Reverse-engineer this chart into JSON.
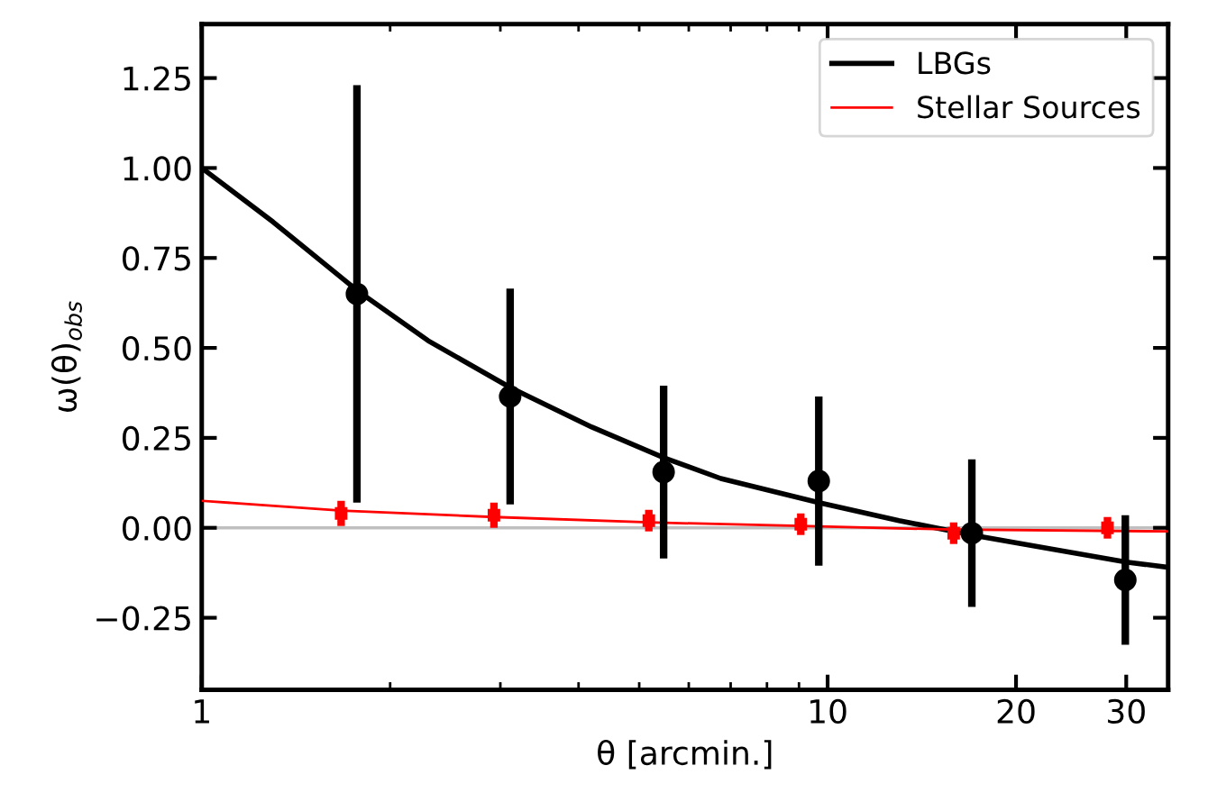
{
  "chart_data": {
    "type": "scatter",
    "xlabel": "θ [arcmin.]",
    "ylabel": "ω(θ)$_{obs}$",
    "log": "x",
    "xlim": [
      1,
      35
    ],
    "ylim": [
      -0.45,
      1.4
    ],
    "xticks": [
      1,
      10,
      20,
      30
    ],
    "yticks": [
      {
        "value": -0.25,
        "label": "−0.25"
      },
      {
        "value": 0,
        "label": "0.00"
      },
      {
        "value": 0.25,
        "label": "0.25"
      },
      {
        "value": 0.5,
        "label": "0.50"
      },
      {
        "value": 0.75,
        "label": "0.75"
      },
      {
        "value": 1.0,
        "label": "1.00"
      },
      {
        "value": 1.25,
        "label": "1.25"
      }
    ],
    "grid": false,
    "legend": "top right",
    "marker": "circle",
    "ref_lines": [
      {
        "axis": "y",
        "value": 0,
        "color": "#bfbfbf"
      }
    ],
    "series": [
      {
        "name": "LBGs",
        "type": "line",
        "marker": "none",
        "color": "#000000",
        "x": [
          1,
          1.3,
          1.77,
          2.3,
          3.11,
          4.2,
          5.47,
          6.75,
          9.68,
          13,
          17,
          23,
          30,
          35
        ],
        "values": [
          1.0,
          0.85,
          0.66,
          0.52,
          0.39,
          0.28,
          0.195,
          0.137,
          0.07,
          0.02,
          -0.02,
          -0.06,
          -0.095,
          -0.11
        ]
      },
      {
        "name": "Stellar Sources",
        "type": "line",
        "marker": "none",
        "color": "#ff0000",
        "x": [
          1,
          1.67,
          2.93,
          5.18,
          9.06,
          15.9,
          35
        ],
        "values": [
          0.075,
          0.048,
          0.03,
          0.015,
          0.005,
          -0.005,
          -0.01
        ]
      },
      {
        "color": "#000000",
        "x": [
          1.77,
          3.11,
          5.47,
          9.68,
          17.0,
          29.9
        ],
        "values": [
          0.65,
          0.365,
          0.155,
          0.13,
          -0.015,
          -0.145
        ],
        "errors": [
          0.58,
          0.3,
          0.24,
          0.235,
          0.205,
          0.18
        ]
      },
      {
        "color": "#ff0000",
        "marker": "square",
        "x": [
          1.67,
          2.93,
          5.18,
          9.06,
          15.9,
          28.0
        ],
        "values": [
          0.04,
          0.035,
          0.02,
          0.01,
          -0.015,
          0.0
        ],
        "errors": [
          0.035,
          0.035,
          0.03,
          0.03,
          0.03,
          0.03
        ]
      }
    ]
  }
}
